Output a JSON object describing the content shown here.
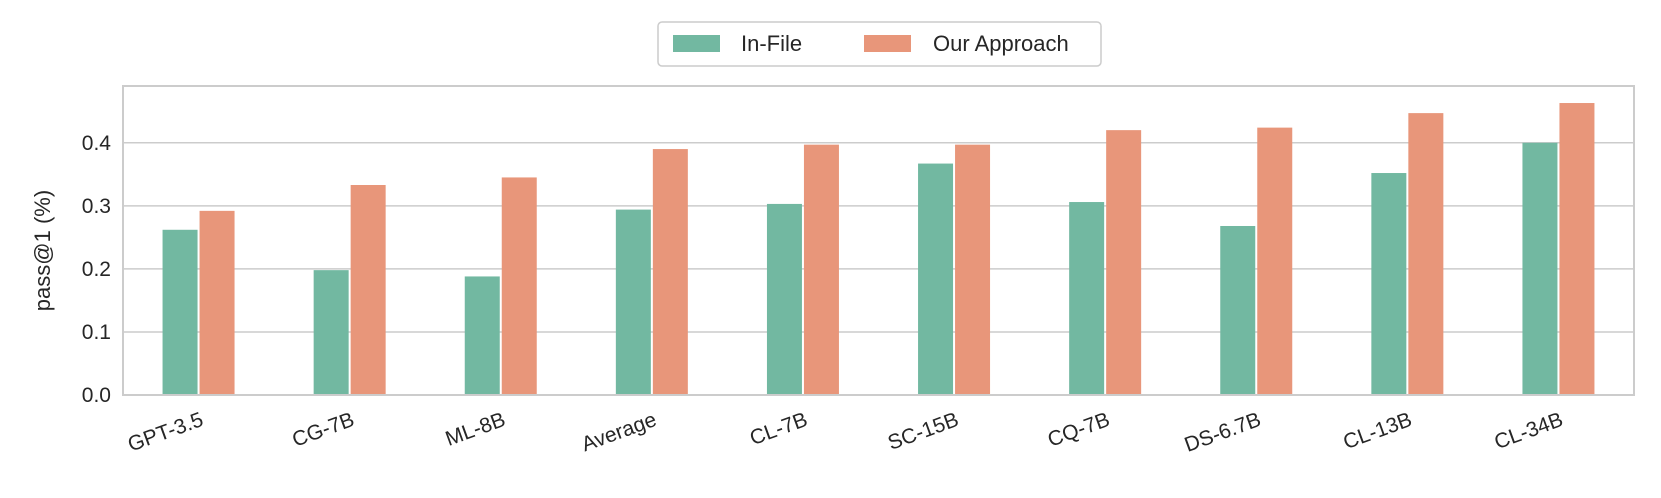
{
  "chart_data": {
    "type": "bar",
    "categories": [
      "GPT-3.5",
      "CG-7B",
      "ML-8B",
      "Average",
      "CL-7B",
      "SC-15B",
      "CQ-7B",
      "DS-6.7B",
      "CL-13B",
      "CL-34B"
    ],
    "series": [
      {
        "name": "In-File",
        "color": "#72b8a1",
        "values": [
          0.262,
          0.198,
          0.188,
          0.294,
          0.303,
          0.367,
          0.306,
          0.268,
          0.352,
          0.4
        ]
      },
      {
        "name": "Our Approach",
        "color": "#e8967a",
        "values": [
          0.292,
          0.333,
          0.345,
          0.39,
          0.397,
          0.397,
          0.42,
          0.424,
          0.447,
          0.463
        ]
      }
    ],
    "xlabel": "",
    "ylabel": "pass@1 (%)",
    "ylim": [
      0,
      0.49
    ],
    "yticks": [
      "0.0",
      "0.1",
      "0.2",
      "0.3",
      "0.4"
    ],
    "ytick_values": [
      0.0,
      0.1,
      0.2,
      0.3,
      0.4
    ],
    "grid": true,
    "legend_position": "top-center"
  }
}
